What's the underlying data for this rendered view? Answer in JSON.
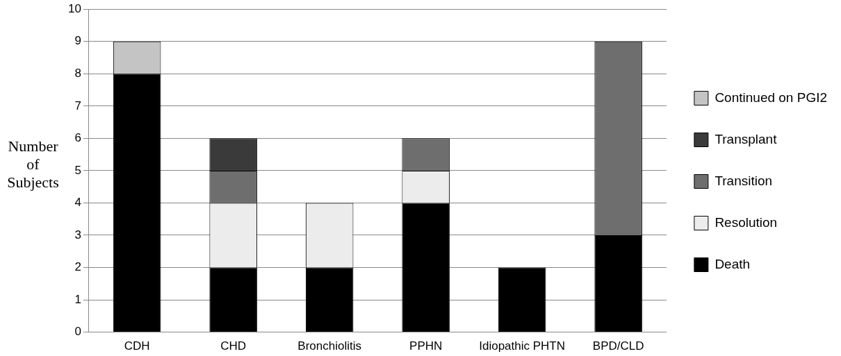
{
  "chart_data": {
    "type": "bar",
    "ylabel": "Number of Subjects",
    "categories": [
      "CDH",
      "CHD",
      "Bronchiolitis",
      "PPHN",
      "Idiopathic PHTN",
      "BPD/CLD"
    ],
    "stacked": true,
    "ylim": [
      0,
      10
    ],
    "yticks": [
      0,
      1,
      2,
      3,
      4,
      5,
      6,
      7,
      8,
      9,
      10
    ],
    "grid": "y",
    "legend": "right",
    "series": [
      {
        "name": "Death",
        "color": "#000000",
        "values": [
          8,
          2,
          2,
          4,
          2,
          3
        ]
      },
      {
        "name": "Resolution",
        "color": "#ececec",
        "values": [
          0,
          2,
          2,
          1,
          0,
          0
        ]
      },
      {
        "name": "Transition",
        "color": "#6e6e6e",
        "values": [
          0,
          1,
          0,
          1,
          0,
          6
        ]
      },
      {
        "name": "Transplant",
        "color": "#3a3a3a",
        "values": [
          0,
          1,
          0,
          0,
          0,
          0
        ]
      },
      {
        "name": "Continued on PGI2",
        "color": "#c4c4c4",
        "values": [
          1,
          0,
          0,
          0,
          0,
          0
        ]
      }
    ]
  }
}
